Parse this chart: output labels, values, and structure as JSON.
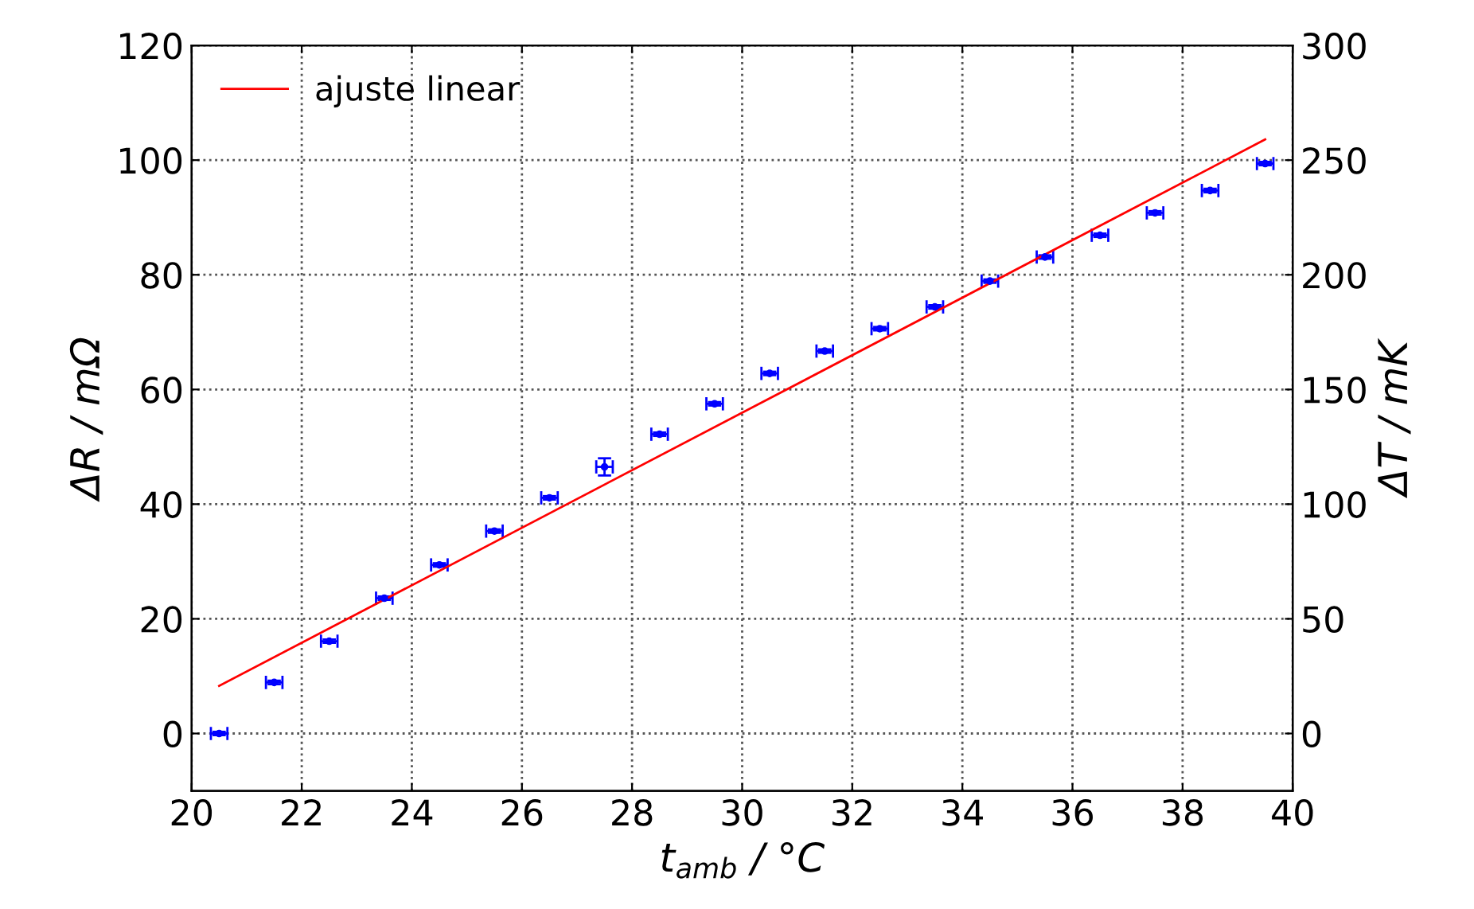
{
  "chart_data": {
    "type": "scatter",
    "xlabel": "t$_{amb}$ / °C",
    "ylabel": "ΔR / mΩ",
    "y2label": "ΔT / mK",
    "xlim": [
      20,
      40
    ],
    "xticks": [
      20,
      22,
      24,
      26,
      28,
      30,
      32,
      34,
      36,
      38,
      40
    ],
    "ylim": [
      -10,
      120
    ],
    "yticks": [
      0,
      20,
      40,
      60,
      80,
      100,
      120
    ],
    "y2lim": [
      -25,
      300
    ],
    "y2ticks": [
      0,
      50,
      100,
      150,
      200,
      250,
      300
    ],
    "grid": true,
    "legend": "top left",
    "series": [
      {
        "color": "#0000ff",
        "marker": "circle",
        "x": [
          20.5,
          21.5,
          22.5,
          23.5,
          24.5,
          25.5,
          26.5,
          27.5,
          28.5,
          29.5,
          30.5,
          31.5,
          32.5,
          33.5,
          34.5,
          35.5,
          36.5,
          37.5,
          38.5,
          39.5
        ],
        "values": [
          0,
          8.9,
          16.1,
          23.6,
          29.4,
          35.3,
          41.1,
          46.5,
          52.2,
          57.5,
          62.8,
          66.7,
          70.6,
          74.4,
          78.9,
          83.1,
          86.9,
          90.8,
          94.7,
          99.4
        ],
        "errors": [
          0.3,
          0.3,
          0.3,
          0.3,
          0.3,
          0.3,
          0.3,
          1.5,
          0.3,
          0.3,
          0.3,
          0.3,
          0.3,
          0.3,
          0.3,
          0.3,
          0.3,
          0.3,
          0.3,
          0.3
        ],
        "xerrors": [
          0.15,
          0.15,
          0.15,
          0.15,
          0.15,
          0.15,
          0.15,
          0.15,
          0.15,
          0.15,
          0.15,
          0.15,
          0.15,
          0.15,
          0.15,
          0.15,
          0.15,
          0.15,
          0.15,
          0.15
        ]
      },
      {
        "type": "line",
        "name": "ajuste linear",
        "color": "#ff0000",
        "x": [
          20.5,
          39.5
        ],
        "values": [
          8.3,
          103.6
        ]
      }
    ]
  }
}
